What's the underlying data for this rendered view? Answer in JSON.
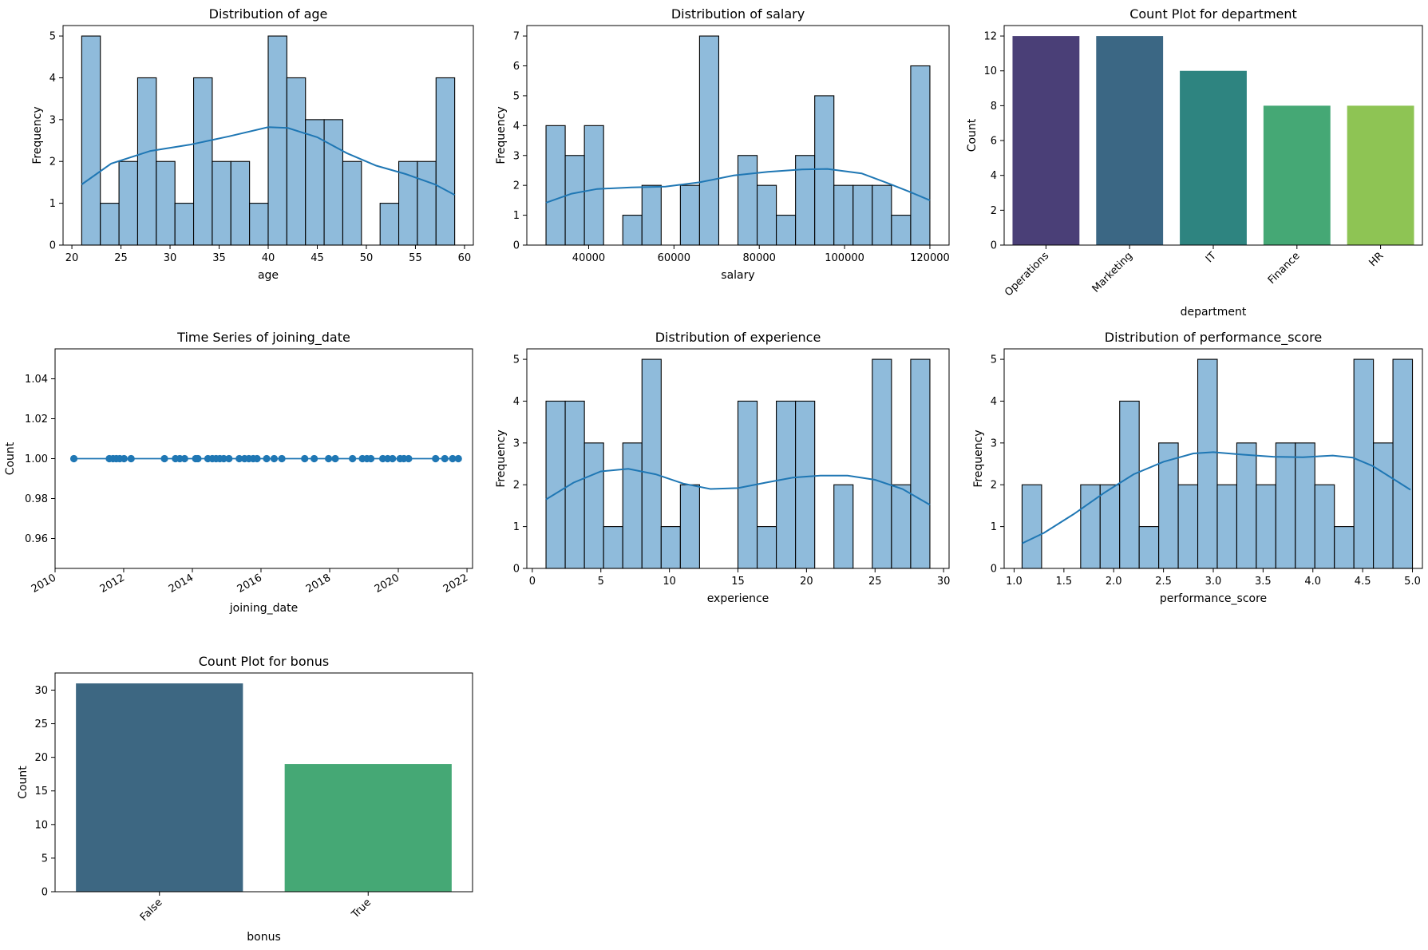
{
  "chart_data": [
    {
      "id": "age",
      "type": "bar",
      "subtype": "histogram_kde",
      "title": "Distribution of age",
      "xlabel": "age",
      "ylabel": "Frequency",
      "xlim": [
        19.1,
        60.9
      ],
      "ylim": [
        0,
        5.25
      ],
      "xticks": [
        20,
        25,
        30,
        35,
        40,
        45,
        50,
        55,
        60
      ],
      "yticks": [
        0,
        1,
        2,
        3,
        4,
        5
      ],
      "bin_start": 21,
      "bin_width": 1.9,
      "values": [
        5,
        1,
        2,
        4,
        2,
        1,
        4,
        2,
        2,
        1,
        5,
        4,
        3,
        3,
        2,
        0,
        1,
        2,
        2,
        4
      ],
      "kde": [
        [
          21,
          1.45
        ],
        [
          24,
          1.95
        ],
        [
          28,
          2.25
        ],
        [
          32,
          2.4
        ],
        [
          36,
          2.6
        ],
        [
          40,
          2.82
        ],
        [
          42,
          2.8
        ],
        [
          45,
          2.58
        ],
        [
          48,
          2.2
        ],
        [
          51,
          1.9
        ],
        [
          54,
          1.7
        ],
        [
          57,
          1.45
        ],
        [
          59,
          1.2
        ]
      ],
      "bar_color": "#8fbbdb",
      "kde_color": "#1f77b4"
    },
    {
      "id": "salary",
      "type": "bar",
      "subtype": "histogram_kde",
      "title": "Distribution of salary",
      "xlabel": "salary",
      "ylabel": "Frequency",
      "xlim": [
        25500,
        124500
      ],
      "ylim": [
        0,
        7.35
      ],
      "xticks": [
        40000,
        60000,
        80000,
        100000,
        120000
      ],
      "yticks": [
        0,
        1,
        2,
        3,
        4,
        5,
        6,
        7
      ],
      "bin_start": 30000,
      "bin_width": 4500,
      "values": [
        4,
        3,
        4,
        0,
        1,
        2,
        0,
        2,
        7,
        0,
        3,
        2,
        1,
        3,
        5,
        2,
        2,
        2,
        1,
        6
      ],
      "kde": [
        [
          30000,
          1.42
        ],
        [
          36000,
          1.72
        ],
        [
          42000,
          1.88
        ],
        [
          50000,
          1.93
        ],
        [
          58000,
          1.96
        ],
        [
          66000,
          2.1
        ],
        [
          74000,
          2.33
        ],
        [
          82000,
          2.45
        ],
        [
          90000,
          2.53
        ],
        [
          96000,
          2.55
        ],
        [
          104000,
          2.4
        ],
        [
          110000,
          2.08
        ],
        [
          115000,
          1.8
        ],
        [
          120000,
          1.5
        ]
      ],
      "bar_color": "#8fbbdb",
      "kde_color": "#1f77b4"
    },
    {
      "id": "department",
      "type": "bar",
      "title": "Count Plot for department",
      "xlabel": "department",
      "ylabel": "Count",
      "ylim": [
        0,
        12.6
      ],
      "yticks": [
        0,
        2,
        4,
        6,
        8,
        10,
        12
      ],
      "categories": [
        "Operations",
        "Marketing",
        "IT",
        "Finance",
        "HR"
      ],
      "values": [
        12,
        12,
        10,
        8,
        8
      ],
      "colors": [
        "#4a3f77",
        "#3b6784",
        "#2e8480",
        "#45a875",
        "#8ec454"
      ]
    },
    {
      "id": "joining_date",
      "type": "line",
      "title": "Time Series of joining_date",
      "xlabel": "joining_date",
      "ylabel": "Count",
      "xlim": [
        "2010-01-01",
        "2022-03-01"
      ],
      "ylim": [
        0.945,
        1.055
      ],
      "xticks": [
        "2010",
        "2012",
        "2014",
        "2016",
        "2018",
        "2020",
        "2022"
      ],
      "yticks": [
        "0.96",
        "0.98",
        "1.00",
        "1.02",
        "1.04"
      ],
      "x": [
        "2010-07-20",
        "2011-08-01",
        "2011-09-10",
        "2011-10-15",
        "2011-11-20",
        "2012-01-05",
        "2012-03-20",
        "2013-03-10",
        "2013-07-05",
        "2013-08-20",
        "2013-10-10",
        "2014-02-05",
        "2014-03-01",
        "2014-06-15",
        "2014-08-01",
        "2014-09-10",
        "2014-10-20",
        "2014-12-01",
        "2015-01-25",
        "2015-05-15",
        "2015-07-10",
        "2015-08-25",
        "2015-10-10",
        "2015-11-20",
        "2016-03-01",
        "2016-05-20",
        "2016-08-10",
        "2017-04-10",
        "2017-07-20",
        "2017-12-20",
        "2018-03-01",
        "2018-09-01",
        "2018-12-15",
        "2019-02-01",
        "2019-03-15",
        "2019-07-20",
        "2019-09-10",
        "2019-11-01",
        "2020-01-20",
        "2020-03-01",
        "2020-04-20",
        "2021-02-01",
        "2021-05-10",
        "2021-08-01",
        "2021-10-01"
      ],
      "values": [
        1,
        1,
        1,
        1,
        1,
        1,
        1,
        1,
        1,
        1,
        1,
        1,
        1,
        1,
        1,
        1,
        1,
        1,
        1,
        1,
        1,
        1,
        1,
        1,
        1,
        1,
        1,
        1,
        1,
        1,
        1,
        1,
        1,
        1,
        1,
        1,
        1,
        1,
        1,
        1,
        1,
        1,
        1,
        1,
        1
      ],
      "color": "#1f77b4"
    },
    {
      "id": "experience",
      "type": "bar",
      "subtype": "histogram_kde",
      "title": "Distribution of experience",
      "xlabel": "experience",
      "ylabel": "Frequency",
      "xlim": [
        -0.4,
        30.4
      ],
      "ylim": [
        0,
        5.25
      ],
      "xticks": [
        0,
        5,
        10,
        15,
        20,
        25,
        30
      ],
      "yticks": [
        0,
        1,
        2,
        3,
        4,
        5
      ],
      "bin_start": 1,
      "bin_width": 1.4,
      "values": [
        4,
        4,
        3,
        1,
        3,
        5,
        1,
        2,
        0,
        0,
        4,
        1,
        4,
        4,
        0,
        2,
        0,
        5,
        2,
        5
      ],
      "kde": [
        [
          1,
          1.65
        ],
        [
          3,
          2.05
        ],
        [
          5,
          2.32
        ],
        [
          7,
          2.38
        ],
        [
          9,
          2.25
        ],
        [
          11,
          2.03
        ],
        [
          13,
          1.9
        ],
        [
          15,
          1.92
        ],
        [
          17,
          2.05
        ],
        [
          19,
          2.17
        ],
        [
          21,
          2.22
        ],
        [
          23,
          2.22
        ],
        [
          25,
          2.12
        ],
        [
          27,
          1.9
        ],
        [
          29,
          1.52
        ]
      ],
      "bar_color": "#8fbbdb",
      "kde_color": "#1f77b4"
    },
    {
      "id": "performance_score",
      "type": "bar",
      "subtype": "histogram_kde",
      "title": "Distribution of performance_score",
      "xlabel": "performance_score",
      "ylabel": "Frequency",
      "xlim": [
        0.9,
        5.1
      ],
      "ylim": [
        0,
        5.25
      ],
      "xticks": [
        "1.0",
        "1.5",
        "2.0",
        "2.5",
        "3.0",
        "3.5",
        "4.0",
        "4.5",
        "5.0"
      ],
      "yticks": [
        0,
        1,
        2,
        3,
        4,
        5
      ],
      "bin_start": 1.08,
      "bin_width": 0.196,
      "values": [
        2,
        0,
        0,
        2,
        2,
        4,
        1,
        3,
        2,
        5,
        2,
        3,
        2,
        3,
        3,
        2,
        1,
        5,
        3,
        5
      ],
      "kde": [
        [
          1.08,
          0.6
        ],
        [
          1.3,
          0.85
        ],
        [
          1.6,
          1.3
        ],
        [
          1.9,
          1.8
        ],
        [
          2.2,
          2.25
        ],
        [
          2.5,
          2.55
        ],
        [
          2.8,
          2.75
        ],
        [
          3.0,
          2.78
        ],
        [
          3.3,
          2.72
        ],
        [
          3.6,
          2.67
        ],
        [
          3.9,
          2.66
        ],
        [
          4.2,
          2.7
        ],
        [
          4.4,
          2.65
        ],
        [
          4.6,
          2.45
        ],
        [
          4.8,
          2.15
        ],
        [
          4.98,
          1.88
        ]
      ],
      "bar_color": "#8fbbdb",
      "kde_color": "#1f77b4"
    },
    {
      "id": "bonus",
      "type": "bar",
      "title": "Count Plot for bonus",
      "xlabel": "bonus",
      "ylabel": "Count",
      "ylim": [
        0,
        32.55
      ],
      "yticks": [
        0,
        5,
        10,
        15,
        20,
        25,
        30
      ],
      "categories": [
        "False",
        "True"
      ],
      "values": [
        31,
        19
      ],
      "colors": [
        "#3d6782",
        "#45a875"
      ]
    }
  ]
}
